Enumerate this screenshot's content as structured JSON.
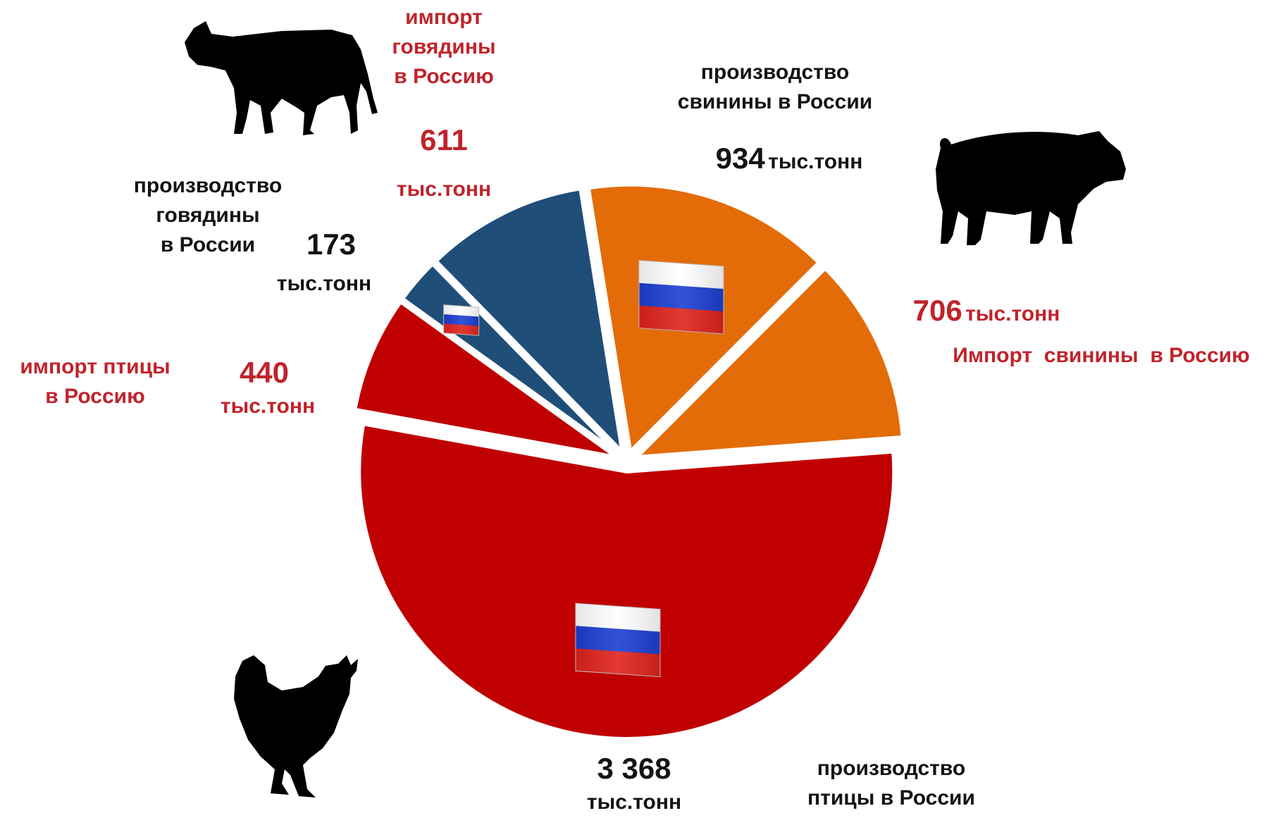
{
  "chart_data": {
    "type": "pie",
    "unit": "тыс.тонн",
    "slices": [
      {
        "label": "производство птицы в России",
        "value": 3368,
        "color": "#c00000",
        "flag": true
      },
      {
        "label": "импорт птицы в Россию",
        "value": 440,
        "color": "#c00000",
        "flag": false
      },
      {
        "label": "производство говядины в России",
        "value": 173,
        "color": "#1f4e79",
        "flag": true
      },
      {
        "label": "импорт говядины в Россию",
        "value": 611,
        "color": "#1f4e79",
        "flag": false
      },
      {
        "label": "производство свинины в России",
        "value": 934,
        "color": "#e36c09",
        "flag": true
      },
      {
        "label": "Импорт свинины в Россию",
        "value": 706,
        "color": "#e36c09",
        "flag": false
      }
    ],
    "animals": [
      {
        "name": "cow-icon",
        "group": "говядина"
      },
      {
        "name": "pig-icon",
        "group": "свинина"
      },
      {
        "name": "hen-icon",
        "group": "птица"
      }
    ]
  },
  "labels": {
    "beef_import": {
      "line1": "импорт",
      "line2": "говядины",
      "line3": "в Россию",
      "value": "611",
      "unit": "тыс.тонн"
    },
    "beef_prod": {
      "line1": "производство",
      "line2": "говядины",
      "line3": "в России",
      "value": "173",
      "unit": "тыс.тонн"
    },
    "pork_prod": {
      "line1": "производство",
      "line2": "свинины в России",
      "value": "934",
      "unit": "тыс.тонн"
    },
    "pork_import": {
      "value": "706",
      "unit": "тыс.тонн",
      "text": "Импорт  свинины  в Россию"
    },
    "poultry_import": {
      "line1": "импорт птицы",
      "line2": "в Россию",
      "value": "440",
      "unit": "тыс.тонн"
    },
    "poultry_prod": {
      "value": "3 368",
      "unit": "тыс.тонн",
      "line1": "производство",
      "line2": "птицы в России"
    }
  }
}
